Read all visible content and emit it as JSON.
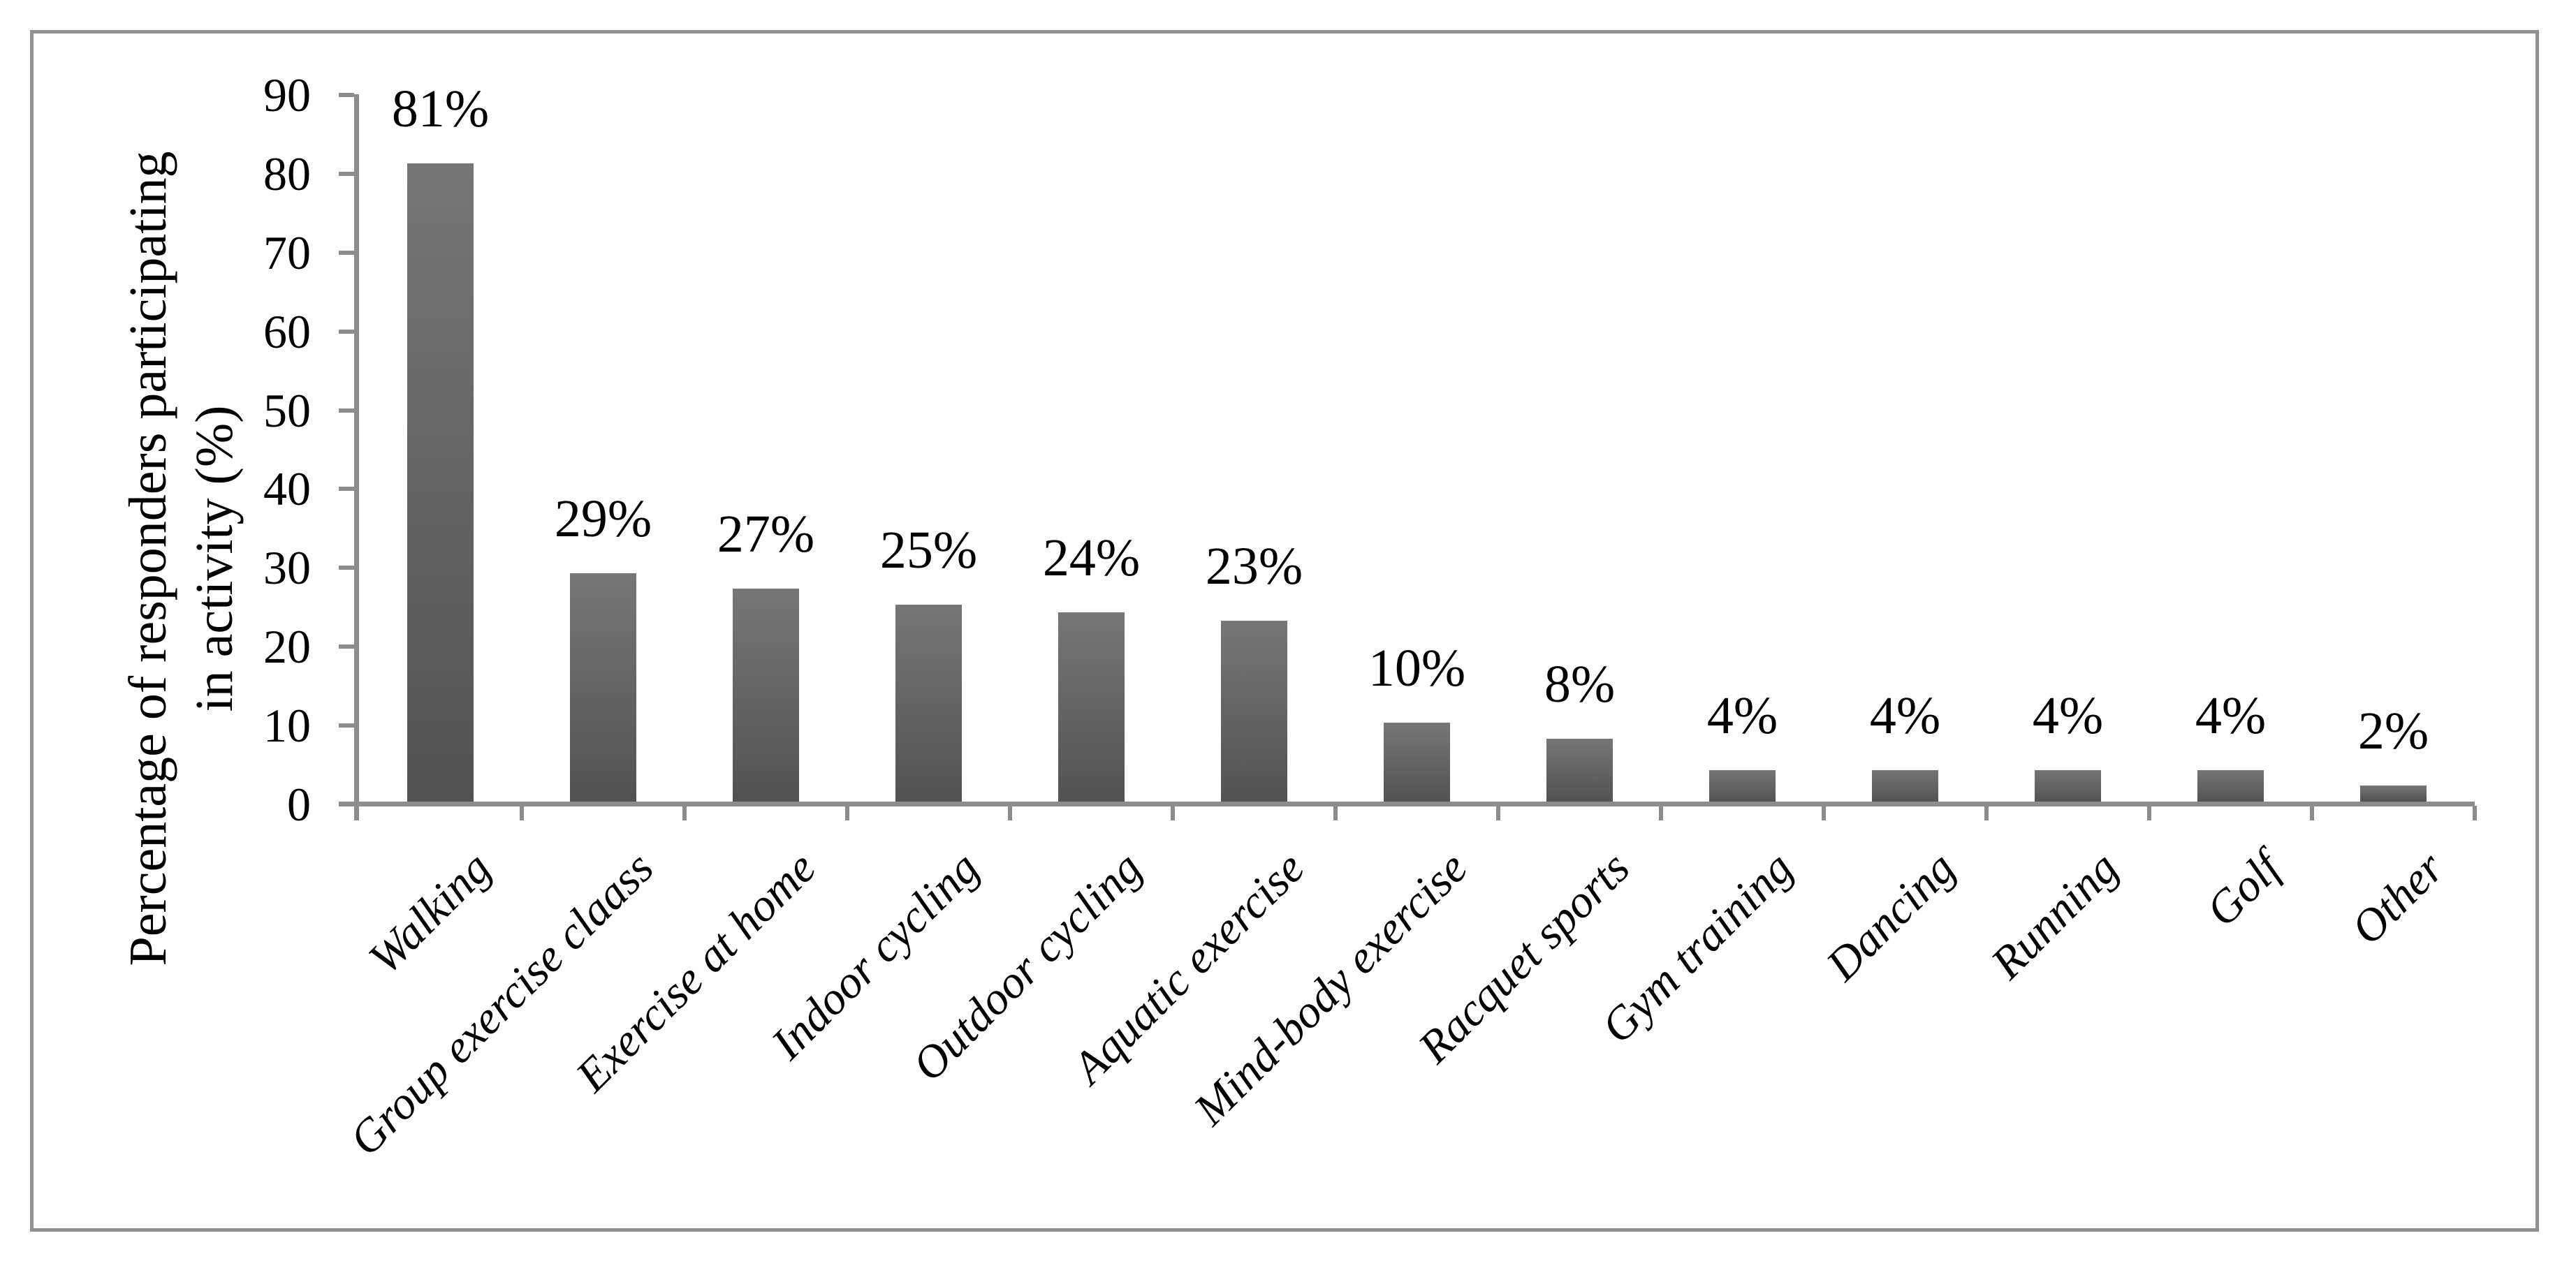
{
  "figure": {
    "background_color": "#ffffff",
    "border_color": "#919191",
    "axis_color": "#8c8c8c",
    "text_color": "#000000",
    "bar_color_top": "#767676",
    "bar_color_bottom": "#525252"
  },
  "y_axis": {
    "title_line1": "Percentage of responders participating",
    "title_line2": "in activity (%)",
    "ticks": [
      0,
      10,
      20,
      30,
      40,
      50,
      60,
      70,
      80,
      90
    ]
  },
  "chart_data": {
    "type": "bar",
    "title": "",
    "xlabel": "",
    "ylabel": "Percentage of responders participating in activity (%)",
    "ylim": [
      0,
      90
    ],
    "ytick_interval": 10,
    "grid": false,
    "legend": "none",
    "categories": [
      "Walking",
      "Group exercise claass",
      "Exercise at home",
      "Indoor cycling",
      "Outdoor cycling",
      "Aquatic exercise",
      "Mind-body exercise",
      "Racquet sports",
      "Gym training",
      "Dancing",
      "Running",
      "Golf",
      "Other"
    ],
    "values": [
      81,
      29,
      27,
      25,
      24,
      23,
      10,
      8,
      4,
      4,
      4,
      4,
      2
    ],
    "data_labels": [
      "81%",
      "29%",
      "27%",
      "25%",
      "24%",
      "23%",
      "10%",
      "8%",
      "4%",
      "4%",
      "4%",
      "4%",
      "2%"
    ]
  }
}
